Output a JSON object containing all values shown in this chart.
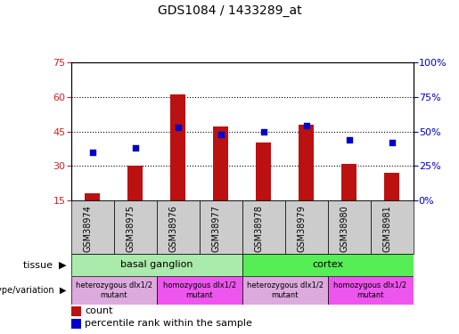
{
  "title": "GDS1084 / 1433289_at",
  "samples": [
    "GSM38974",
    "GSM38975",
    "GSM38976",
    "GSM38977",
    "GSM38978",
    "GSM38979",
    "GSM38980",
    "GSM38981"
  ],
  "counts": [
    18,
    30,
    61,
    47,
    40,
    48,
    31,
    27
  ],
  "percentiles": [
    35,
    38,
    53,
    48,
    50,
    54,
    44,
    42
  ],
  "ylim_left": [
    15,
    75
  ],
  "ylim_right": [
    0,
    100
  ],
  "yticks_left": [
    15,
    30,
    45,
    60,
    75
  ],
  "yticks_right": [
    0,
    25,
    50,
    75,
    100
  ],
  "bar_color": "#bb1111",
  "dot_color": "#0000cc",
  "bar_bottom": 15,
  "tissue_groups": [
    {
      "label": "basal ganglion",
      "start": 0,
      "end": 4,
      "color": "#aaeaaa"
    },
    {
      "label": "cortex",
      "start": 4,
      "end": 8,
      "color": "#55ee55"
    }
  ],
  "genotype_groups": [
    {
      "label": "heterozygous dlx1/2\nmutant",
      "start": 0,
      "end": 2,
      "color": "#ddaadd"
    },
    {
      "label": "homozygous dlx1/2\nmutant",
      "start": 2,
      "end": 4,
      "color": "#ee55ee"
    },
    {
      "label": "heterozygous dlx1/2\nmutant",
      "start": 4,
      "end": 6,
      "color": "#ddaadd"
    },
    {
      "label": "homozygous dlx1/2\nmutant",
      "start": 6,
      "end": 8,
      "color": "#ee55ee"
    }
  ],
  "grid_yticks": [
    30,
    45,
    60
  ],
  "left_axis_color": "#cc2222",
  "right_axis_color": "#0000cc",
  "sample_bg_color": "#cccccc"
}
